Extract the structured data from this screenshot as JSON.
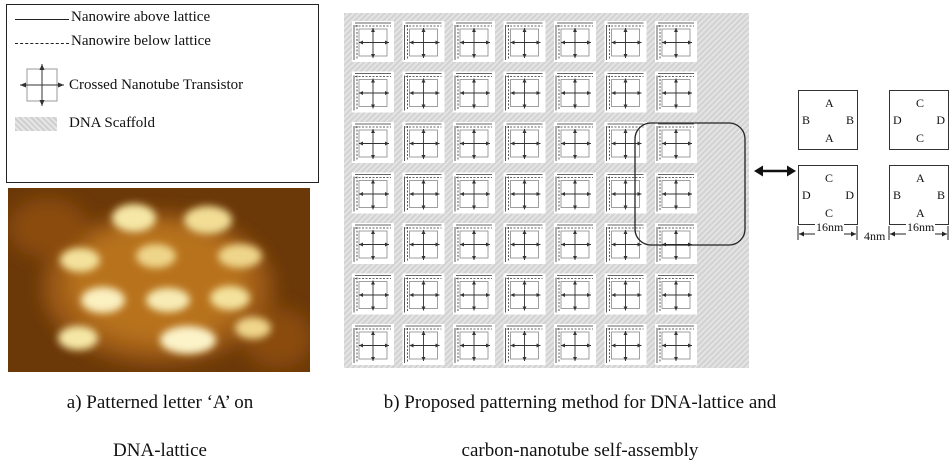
{
  "legend": {
    "items": [
      {
        "label": "Nanowire above lattice"
      },
      {
        "label": "Nanowire below lattice"
      },
      {
        "label": "Crossed Nanotube Transistor"
      },
      {
        "label": "DNA Scaffold"
      }
    ]
  },
  "captions": {
    "a_line1": "a) Patterned letter ‘A’ on",
    "a_line2": "DNA-lattice",
    "b_line1": "b) Proposed patterning method for DNA-lattice and",
    "b_line2": "carbon-nanotube self-assembly"
  },
  "lattice": {
    "rows": 7,
    "cols": 7
  },
  "blocks": {
    "top_left": {
      "top": "A",
      "left": "B",
      "right": "B",
      "bottom": "A"
    },
    "top_right": {
      "top": "C",
      "left": "D",
      "right": "D",
      "bottom": "C"
    },
    "bottom_left": {
      "top": "C",
      "left": "D",
      "right": "D",
      "bottom": "C"
    },
    "bottom_right": {
      "top": "A",
      "left": "B",
      "right": "B",
      "bottom": "A"
    }
  },
  "dimensions": {
    "block_width_1": "16nm",
    "gap": "4nm",
    "block_width_2": "16nm"
  },
  "colors": {
    "scaffold": "#dcdcdc",
    "afm_dark": "#5a2e05",
    "afm_mid": "#b5701f",
    "afm_bright": "#ffffe0"
  }
}
